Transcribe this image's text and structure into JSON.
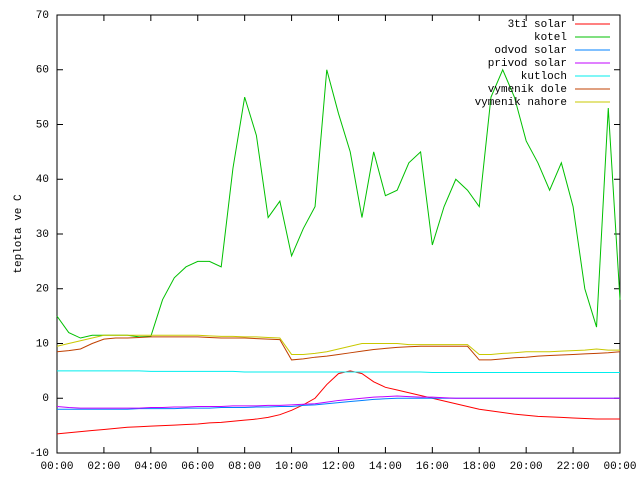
{
  "chart_data": {
    "type": "line",
    "y_label": "teplota ve C",
    "x": [
      0,
      0.5,
      1,
      1.5,
      2,
      2.5,
      3,
      3.5,
      4,
      4.5,
      5,
      5.5,
      6,
      6.5,
      7,
      7.5,
      8,
      8.5,
      9,
      9.5,
      10,
      10.5,
      11,
      11.5,
      12,
      12.5,
      13,
      13.5,
      14,
      14.5,
      15,
      15.5,
      16,
      16.5,
      17,
      17.5,
      18,
      18.5,
      19,
      19.5,
      20,
      20.5,
      21,
      21.5,
      22,
      22.5,
      23,
      23.5,
      24
    ],
    "xlim": [
      0,
      24
    ],
    "xticks": [
      {
        "value": 0,
        "label": "00:00"
      },
      {
        "value": 2,
        "label": "02:00"
      },
      {
        "value": 4,
        "label": "04:00"
      },
      {
        "value": 6,
        "label": "06:00"
      },
      {
        "value": 8,
        "label": "08:00"
      },
      {
        "value": 10,
        "label": "10:00"
      },
      {
        "value": 12,
        "label": "12:00"
      },
      {
        "value": 14,
        "label": "14:00"
      },
      {
        "value": 16,
        "label": "16:00"
      },
      {
        "value": 18,
        "label": "18:00"
      },
      {
        "value": 20,
        "label": "20:00"
      },
      {
        "value": 22,
        "label": "22:00"
      },
      {
        "value": 24,
        "label": "00:00"
      }
    ],
    "ylim": [
      -10,
      70
    ],
    "yticks": [
      -10,
      0,
      10,
      20,
      30,
      40,
      50,
      60,
      70
    ],
    "legend": "top-right",
    "series": [
      {
        "name": "3ti solar",
        "color": "#ff0000",
        "values": [
          -6.5,
          -6.3,
          -6.1,
          -5.9,
          -5.7,
          -5.5,
          -5.3,
          -5.2,
          -5.1,
          -5,
          -4.9,
          -4.8,
          -4.7,
          -4.5,
          -4.4,
          -4.2,
          -4,
          -3.8,
          -3.5,
          -3,
          -2.2,
          -1.2,
          0,
          2.5,
          4.5,
          5,
          4.5,
          3,
          2,
          1.5,
          1,
          0.5,
          0,
          -0.5,
          -1,
          -1.5,
          -2,
          -2.3,
          -2.6,
          -2.9,
          -3.1,
          -3.3,
          -3.4,
          -3.5,
          -3.6,
          -3.7,
          -3.8,
          -3.8,
          -3.8
        ]
      },
      {
        "name": "kotel",
        "color": "#00c000",
        "values": [
          15,
          12,
          11,
          11.5,
          11.5,
          11.5,
          11.5,
          11.2,
          11.3,
          18,
          22,
          24,
          25,
          25,
          24,
          42,
          55,
          48,
          33,
          36,
          26,
          31,
          35,
          60,
          52,
          45,
          33,
          45,
          37,
          38,
          43,
          45,
          28,
          35,
          40,
          38,
          35,
          55,
          60,
          55,
          47,
          43,
          38,
          43,
          35,
          20,
          13,
          53,
          18
        ]
      },
      {
        "name": "odvod solar",
        "color": "#0080ff",
        "values": [
          -2,
          -2,
          -2,
          -2,
          -2,
          -2,
          -2,
          -1.9,
          -1.9,
          -1.9,
          -1.9,
          -1.8,
          -1.8,
          -1.8,
          -1.7,
          -1.7,
          -1.7,
          -1.6,
          -1.6,
          -1.5,
          -1.5,
          -1.3,
          -1.2,
          -1,
          -0.8,
          -0.6,
          -0.4,
          -0.2,
          -0.1,
          0,
          0,
          0,
          0,
          0,
          0,
          0,
          0,
          0,
          0,
          0,
          0,
          0,
          0,
          0,
          0,
          0,
          0,
          0,
          0
        ]
      },
      {
        "name": "privod solar",
        "color": "#c000ff",
        "values": [
          -1.5,
          -1.7,
          -1.8,
          -1.8,
          -1.8,
          -1.8,
          -1.8,
          -1.8,
          -1.7,
          -1.7,
          -1.6,
          -1.6,
          -1.5,
          -1.5,
          -1.5,
          -1.4,
          -1.4,
          -1.4,
          -1.3,
          -1.3,
          -1.2,
          -1.1,
          -1,
          -0.7,
          -0.4,
          -0.2,
          0,
          0.2,
          0.3,
          0.4,
          0.3,
          0.2,
          0.2,
          0.1,
          0,
          0,
          0,
          0,
          0,
          0,
          0,
          0,
          0,
          0,
          0,
          0,
          0,
          0,
          0
        ]
      },
      {
        "name": "kutloch",
        "color": "#00eeee",
        "values": [
          5,
          5,
          5,
          5,
          5,
          5,
          5,
          5,
          4.9,
          4.9,
          4.9,
          4.9,
          4.9,
          4.9,
          4.9,
          4.9,
          4.8,
          4.8,
          4.8,
          4.8,
          4.8,
          4.8,
          4.8,
          4.8,
          4.8,
          4.8,
          4.8,
          4.8,
          4.8,
          4.8,
          4.8,
          4.8,
          4.7,
          4.7,
          4.7,
          4.7,
          4.7,
          4.7,
          4.7,
          4.7,
          4.7,
          4.7,
          4.7,
          4.7,
          4.7,
          4.7,
          4.7,
          4.7,
          4.7
        ]
      },
      {
        "name": "vymenik dole",
        "color": "#c04000",
        "values": [
          8.5,
          8.7,
          9,
          10,
          10.8,
          11,
          11,
          11.1,
          11.2,
          11.2,
          11.2,
          11.2,
          11.2,
          11.1,
          11,
          11,
          11,
          10.9,
          10.8,
          10.7,
          7,
          7.2,
          7.5,
          7.7,
          8,
          8.3,
          8.6,
          8.9,
          9.1,
          9.3,
          9.4,
          9.5,
          9.5,
          9.5,
          9.5,
          9.5,
          7,
          7,
          7.2,
          7.4,
          7.5,
          7.7,
          7.8,
          7.9,
          8,
          8.1,
          8.2,
          8.3,
          8.5
        ]
      },
      {
        "name": "vymenik nahore",
        "color": "#c8c800",
        "values": [
          9.5,
          10,
          10.5,
          11,
          11.5,
          11.5,
          11.5,
          11.5,
          11.5,
          11.5,
          11.5,
          11.5,
          11.5,
          11.4,
          11.3,
          11.3,
          11.2,
          11.2,
          11.1,
          11,
          8,
          8,
          8.2,
          8.5,
          9,
          9.5,
          10,
          10,
          10,
          10,
          9.8,
          9.8,
          9.8,
          9.8,
          9.8,
          9.8,
          8,
          8,
          8.2,
          8.3,
          8.5,
          8.5,
          8.5,
          8.6,
          8.7,
          8.8,
          9,
          8.8,
          8.8
        ]
      }
    ]
  }
}
